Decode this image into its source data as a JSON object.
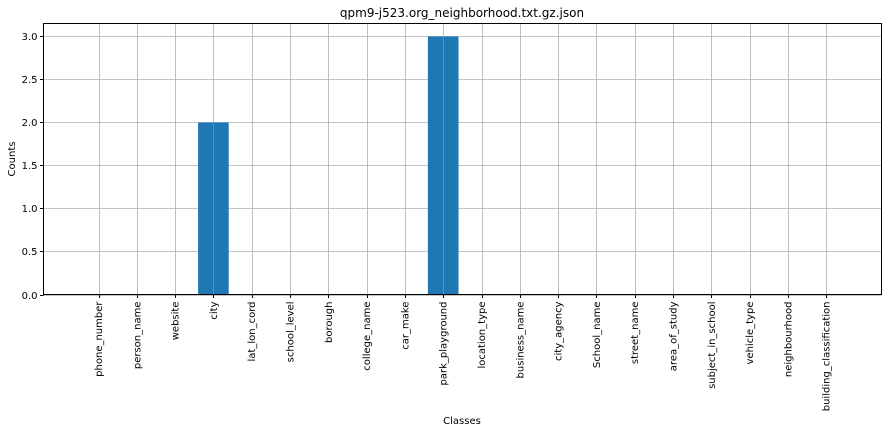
{
  "chart_data": {
    "type": "bar",
    "title": "qpm9-j523.org_neighborhood.txt.gz.json",
    "xlabel": "Classes",
    "ylabel": "Counts",
    "categories": [
      "phone_number",
      "person_name",
      "website",
      "city",
      "lat_lon_cord",
      "school_level",
      "borough",
      "college_name",
      "car_make",
      "park_playground",
      "location_type",
      "business_name",
      "city_agency",
      "School_name",
      "street_name",
      "area_of_study",
      "subject_in_school",
      "vehicle_type",
      "neighbourhood",
      "building_classification"
    ],
    "values": [
      0,
      0,
      0,
      2,
      0,
      0,
      0,
      0,
      0,
      3,
      0,
      0,
      0,
      0,
      0,
      0,
      0,
      0,
      0,
      0
    ],
    "ylim": [
      0,
      3.15
    ],
    "yticks": [
      "0.0",
      "0.5",
      "1.0",
      "1.5",
      "2.0",
      "2.5",
      "3.0"
    ],
    "grid": true,
    "bar_color": "#1f77b4",
    "grid_color": "#b0b0b0"
  }
}
